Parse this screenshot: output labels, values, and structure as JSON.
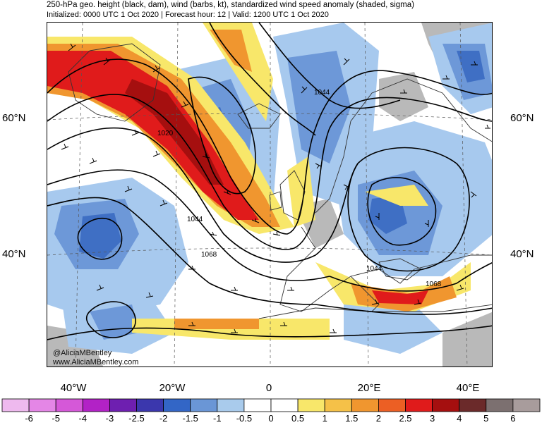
{
  "title": {
    "line1": "250-hPa geo. height (black, dam), wind (barbs, kt), standardized wind speed anomaly (shaded, sigma)",
    "line2": "Initialized: 0000 UTC 1 Oct 2020 | Forecast hour: 12 | Valid: 1200 UTC 1 Oct 2020"
  },
  "latitude_labels": [
    "60°N",
    "40°N"
  ],
  "longitude_labels": [
    "40°W",
    "20°W",
    "0",
    "20°E",
    "40°E"
  ],
  "contour_labels": [
    "1020",
    "1044",
    "1068",
    "1044",
    "1044",
    "1068"
  ],
  "credit": {
    "twitter": "@AliciaMBentley",
    "website": "www.AliciaMBentley.com"
  },
  "colorbar": {
    "labels": [
      "-6",
      "-5",
      "-4",
      "-3",
      "-2.5",
      "-2",
      "-1.5",
      "-1",
      "-0.5",
      "0",
      "0.5",
      "1",
      "1.5",
      "2",
      "2.5",
      "3",
      "4",
      "5",
      "6"
    ],
    "colors": [
      "#eeb9ee",
      "#e486e6",
      "#d558d8",
      "#b222c6",
      "#6e1fb0",
      "#3b37ad",
      "#3366c6",
      "#6a96d6",
      "#a9cbec",
      "#ffffff",
      "#ffffff",
      "#f8e76a",
      "#f5c148",
      "#f0962f",
      "#ec5f24",
      "#e01b1b",
      "#a50f0f",
      "#6b2a2a",
      "#7c7070",
      "#a89c9c"
    ]
  },
  "style_colors": {
    "strong_blue": "#3f6fc4",
    "mid_blue": "#6d98d8",
    "light_blue": "#a7c9ee",
    "yellow": "#f8e76a",
    "orange": "#f0962f",
    "red": "#e01b1b",
    "dark_red": "#a50f0f",
    "gray": "#b9b9b9"
  }
}
